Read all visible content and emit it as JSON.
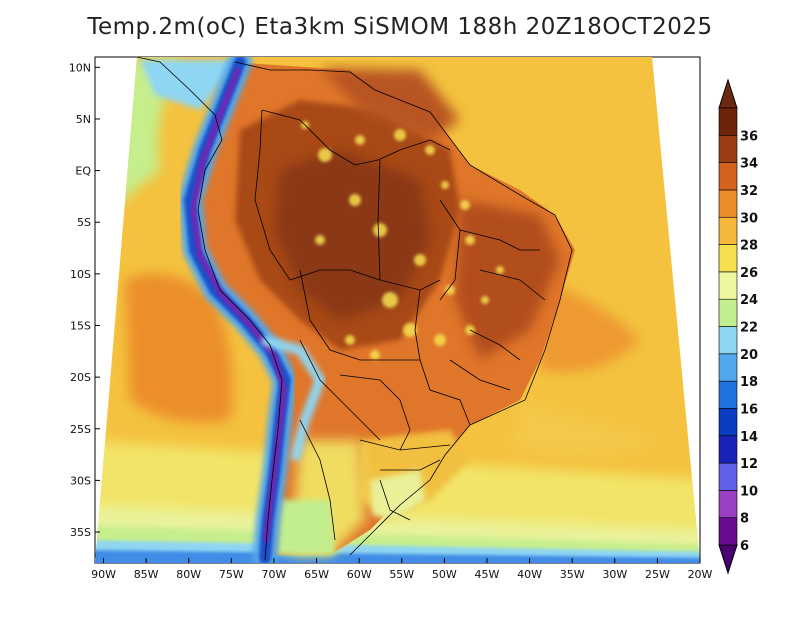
{
  "title": "Temp.2m(oC) Eta3km SiSMOM 188h 20Z18OCT2025",
  "map": {
    "variable": "2 m air temperature",
    "units": "oC",
    "model": "Eta3km SiSMOM",
    "forecast_hour": "188h",
    "valid_time": "20Z18OCT2025",
    "lon_range": [
      -91,
      -20
    ],
    "lat_range": [
      -38,
      11
    ],
    "lat_ticks": [
      {
        "value": 10,
        "label": "10N"
      },
      {
        "value": 5,
        "label": "5N"
      },
      {
        "value": 0,
        "label": "EQ"
      },
      {
        "value": -5,
        "label": "5S"
      },
      {
        "value": -10,
        "label": "10S"
      },
      {
        "value": -15,
        "label": "15S"
      },
      {
        "value": -20,
        "label": "20S"
      },
      {
        "value": -25,
        "label": "25S"
      },
      {
        "value": -30,
        "label": "30S"
      },
      {
        "value": -35,
        "label": "35S"
      }
    ],
    "lon_ticks": [
      {
        "value": -90,
        "label": "90W"
      },
      {
        "value": -85,
        "label": "85W"
      },
      {
        "value": -80,
        "label": "80W"
      },
      {
        "value": -75,
        "label": "75W"
      },
      {
        "value": -70,
        "label": "70W"
      },
      {
        "value": -65,
        "label": "65W"
      },
      {
        "value": -60,
        "label": "60W"
      },
      {
        "value": -55,
        "label": "55W"
      },
      {
        "value": -50,
        "label": "50W"
      },
      {
        "value": -45,
        "label": "45W"
      },
      {
        "value": -40,
        "label": "40W"
      },
      {
        "value": -35,
        "label": "35W"
      },
      {
        "value": -30,
        "label": "30W"
      },
      {
        "value": -25,
        "label": "25W"
      },
      {
        "value": -20,
        "label": "20W"
      }
    ]
  },
  "colorbar": {
    "levels": [
      6,
      8,
      10,
      12,
      14,
      16,
      18,
      20,
      22,
      24,
      26,
      28,
      30,
      32,
      34,
      36
    ],
    "colors": [
      "#6a0a8e",
      "#9b3fc4",
      "#6060e8",
      "#1a22b8",
      "#0a3cc0",
      "#1f74e0",
      "#52a8ec",
      "#8fd6f2",
      "#c2ee8e",
      "#eef6a0",
      "#f6e050",
      "#f6b83a",
      "#ec8c28",
      "#d2621e",
      "#9c3e14",
      "#6e2408"
    ],
    "under_color": "#4a0070",
    "over_color": "#6b2a10"
  }
}
